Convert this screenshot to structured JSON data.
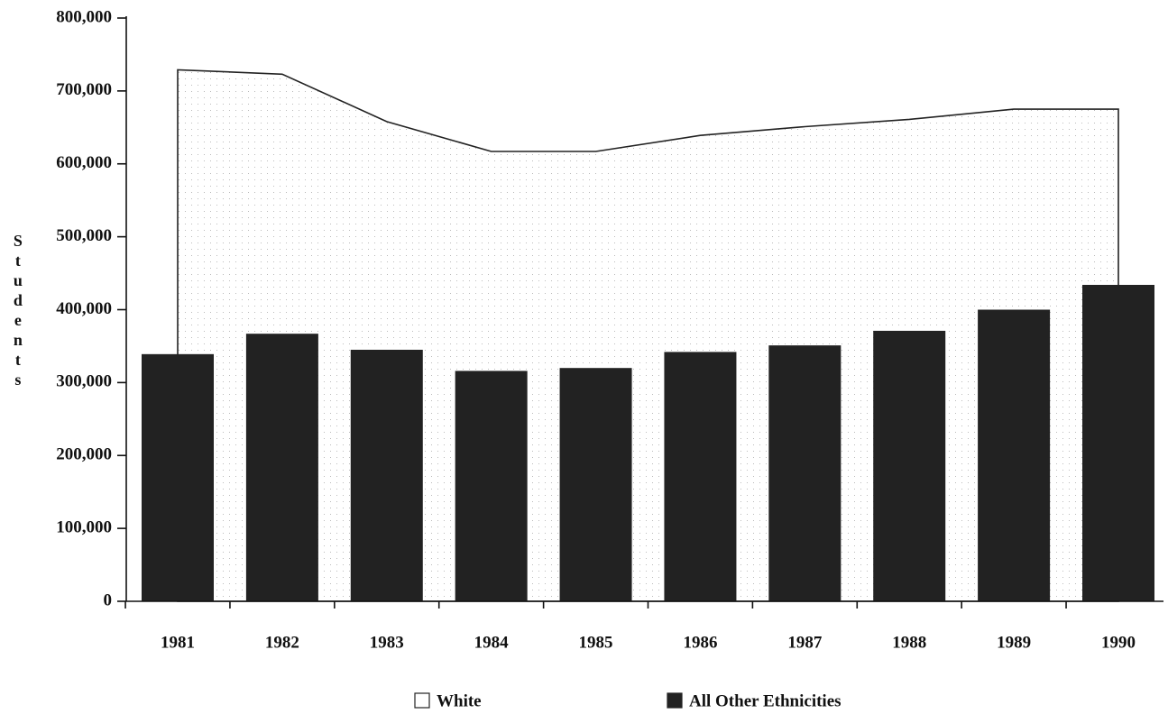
{
  "chart_data": {
    "type": "bar",
    "y_label": "Students",
    "categories": [
      "1981",
      "1982",
      "1983",
      "1984",
      "1985",
      "1986",
      "1987",
      "1988",
      "1989",
      "1990"
    ],
    "series": [
      {
        "name": "White",
        "type": "area",
        "color": "#ffffff",
        "values": [
          729000,
          723000,
          658000,
          617000,
          617000,
          639000,
          651000,
          661000,
          675000,
          675000
        ]
      },
      {
        "name": "All Other Ethnicities",
        "type": "bar",
        "color": "#222222",
        "values": [
          339000,
          367000,
          345000,
          316000,
          320000,
          342000,
          351000,
          371000,
          400000,
          434000
        ]
      }
    ],
    "ylim": [
      0,
      800000
    ],
    "yticks": [
      0,
      {
        "value": 100000,
        "label": "100,000"
      },
      {
        "value": 200000,
        "label": "200,000"
      },
      {
        "value": 300000,
        "label": "300,000"
      },
      {
        "value": 400000,
        "label": "400,000"
      },
      {
        "value": 500000,
        "label": "500,000"
      },
      {
        "value": 600000,
        "label": "600,000"
      },
      {
        "value": 700000,
        "label": "700,000"
      },
      {
        "value": 800000,
        "label": "800,000"
      }
    ],
    "grid": false
  }
}
